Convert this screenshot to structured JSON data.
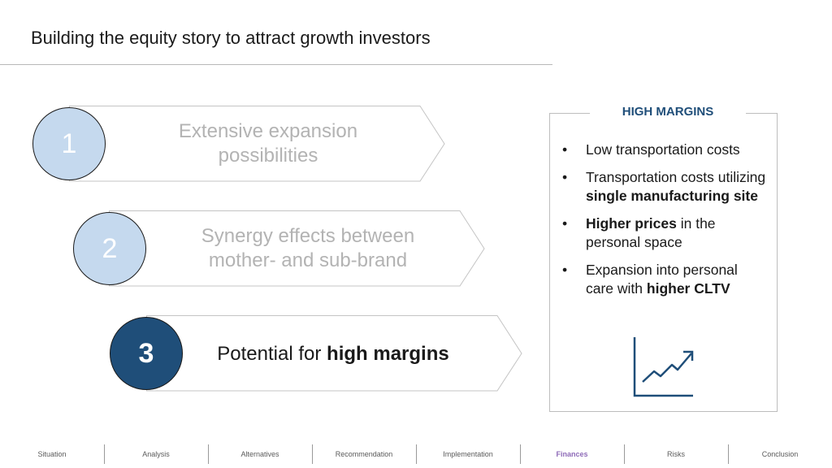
{
  "header": {
    "title": "Building the equity story to attract growth investors"
  },
  "steps": [
    {
      "number": "1",
      "text_lines": [
        "Extensive expansion",
        "possibilities"
      ]
    },
    {
      "number": "2",
      "text_lines": [
        "Synergy effects between",
        "mother- and sub-brand"
      ]
    },
    {
      "number": "3",
      "text_plain": "Potential for ",
      "text_bold": "high margins"
    }
  ],
  "panel": {
    "title": "HIGH MARGINS",
    "bullets": [
      {
        "parts": [
          {
            "t": "Low transportation costs"
          }
        ]
      },
      {
        "parts": [
          {
            "t": "Transportation costs utilizing "
          },
          {
            "t": "single manufacturing site",
            "b": true
          }
        ]
      },
      {
        "parts": [
          {
            "t": "Higher prices",
            "b": true
          },
          {
            "t": " in the personal space"
          }
        ]
      },
      {
        "parts": [
          {
            "t": "Expansion into personal care with "
          },
          {
            "t": "higher CLTV",
            "b": true
          }
        ]
      }
    ],
    "icon": "line-chart-up-icon"
  },
  "nav": {
    "items": [
      "Situation",
      "Analysis",
      "Alternatives",
      "Recommendation",
      "Implementation",
      "Finances",
      "Risks",
      "Conclusion"
    ],
    "active": "Finances"
  },
  "colors": {
    "accent": "#1f4e79",
    "circle_light": "#c5d9ee",
    "circle_dark": "#1f4e79",
    "nav_active": "#8e6bb8"
  }
}
